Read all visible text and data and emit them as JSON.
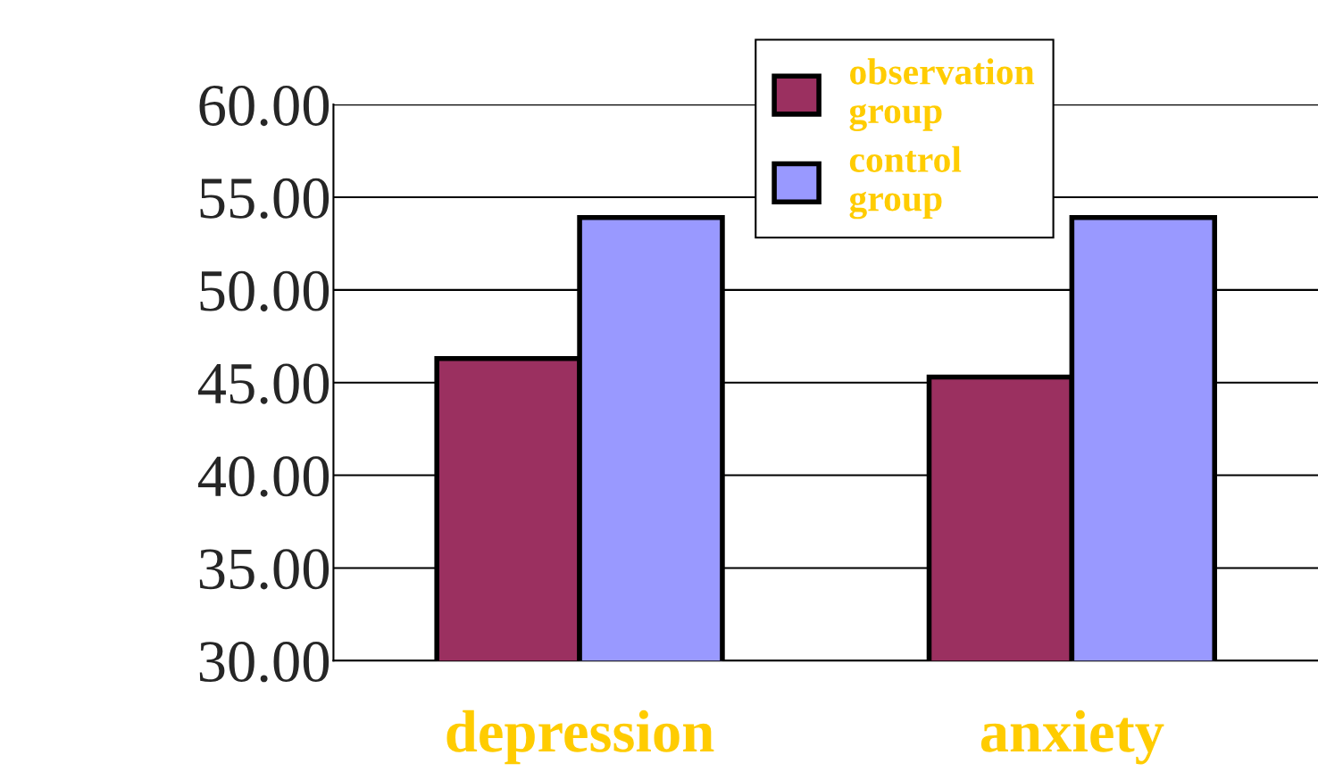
{
  "chart_data": {
    "type": "bar",
    "categories": [
      "depression",
      "anxiety"
    ],
    "series": [
      {
        "name": "observation group",
        "color": "#9b3060",
        "values": [
          46.3,
          45.3
        ]
      },
      {
        "name": "control group",
        "color": "#9999ff",
        "values": [
          53.9,
          53.9
        ]
      }
    ],
    "ylim": [
      30,
      60
    ],
    "yticks": [
      {
        "value": 30,
        "label": "30.00"
      },
      {
        "value": 35,
        "label": "35.00"
      },
      {
        "value": 40,
        "label": "40.00"
      },
      {
        "value": 45,
        "label": "45.00"
      },
      {
        "value": 50,
        "label": "50.00"
      },
      {
        "value": 55,
        "label": "55.00"
      },
      {
        "value": 60,
        "label": "60.00"
      }
    ],
    "grid": "y",
    "legend": "top"
  }
}
